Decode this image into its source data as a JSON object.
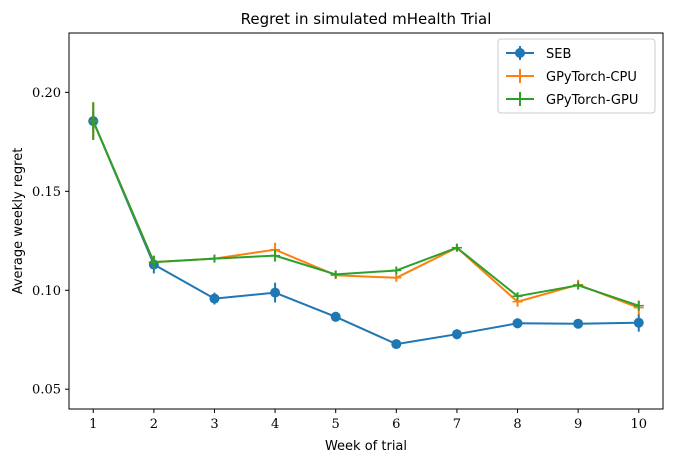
{
  "chart_data": {
    "type": "line",
    "title": "Regret in simulated mHealth Trial",
    "xlabel": "Week of trial",
    "ylabel": "Average weekly regret",
    "x": [
      1,
      2,
      3,
      4,
      5,
      6,
      7,
      8,
      9,
      10
    ],
    "xticks": [
      "1",
      "2",
      "3",
      "4",
      "5",
      "6",
      "7",
      "8",
      "9",
      "10"
    ],
    "yticks": [
      0.05,
      0.1,
      0.15,
      0.2
    ],
    "ytick_labels": [
      "0.05",
      "0.10",
      "0.15",
      "0.20"
    ],
    "xlim": [
      0.6,
      10.4
    ],
    "ylim": [
      0.04,
      0.23
    ],
    "grid": false,
    "legend_position": "top-right",
    "series": [
      {
        "name": "SEB",
        "color": "#1f77b4",
        "marker": "circle",
        "values": [
          0.1855,
          0.113,
          0.0958,
          0.0988,
          0.0866,
          0.0728,
          0.0778,
          0.0833,
          0.0831,
          0.0836
        ],
        "errors": [
          0.0045,
          0.0045,
          0.003,
          0.005,
          0.0025,
          0.0015,
          0.0025,
          0.0025,
          0.002,
          0.0045
        ]
      },
      {
        "name": "GPyTorch-CPU",
        "color": "#ff7f0e",
        "marker": "none",
        "values": [
          0.1855,
          0.1142,
          0.116,
          0.1205,
          0.1076,
          0.1063,
          0.1215,
          0.0942,
          0.1028,
          0.0912
        ],
        "errors": [
          0.0095,
          0.003,
          0.002,
          0.0035,
          0.002,
          0.002,
          0.002,
          0.0025,
          0.0025,
          0.0035
        ]
      },
      {
        "name": "GPyTorch-GPU",
        "color": "#2ca02c",
        "marker": "none",
        "values": [
          0.1855,
          0.1142,
          0.116,
          0.1175,
          0.108,
          0.11,
          0.1215,
          0.097,
          0.1025,
          0.0922
        ],
        "errors": [
          0.0095,
          0.003,
          0.002,
          0.003,
          0.002,
          0.002,
          0.002,
          0.002,
          0.002,
          0.0025
        ]
      }
    ]
  }
}
